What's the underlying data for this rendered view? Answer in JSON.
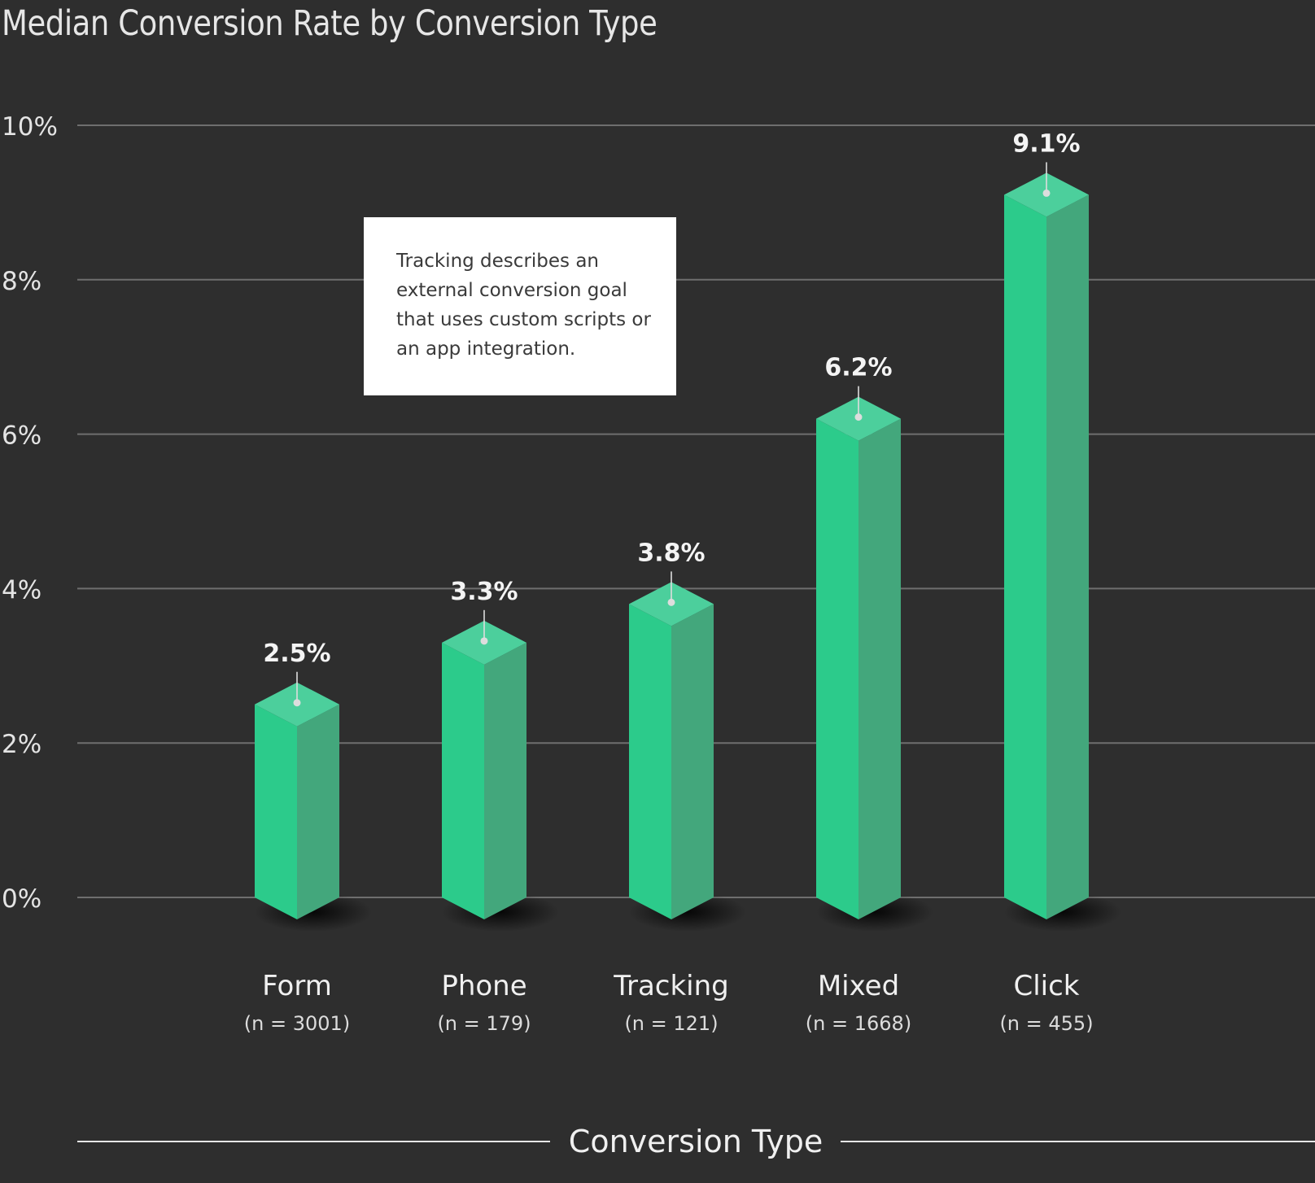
{
  "chart_data": {
    "type": "bar",
    "title": "Median Conversion Rate by Conversion Type",
    "xlabel": "Conversion Type",
    "ylabel": "",
    "ylim": [
      0,
      10
    ],
    "y_ticks": [
      "0%",
      "2%",
      "4%",
      "6%",
      "8%",
      "10%"
    ],
    "categories": [
      "Form",
      "Phone",
      "Tracking",
      "Mixed",
      "Click"
    ],
    "counts": [
      "(n = 3001)",
      "(n = 179)",
      "(n = 121)",
      "(n = 1668)",
      "(n = 455)"
    ],
    "values": [
      2.5,
      3.3,
      3.8,
      6.2,
      9.1
    ],
    "value_labels": [
      "2.5%",
      "3.3%",
      "3.8%",
      "6.2%",
      "9.1%"
    ],
    "grid": true,
    "colors": {
      "background": "#2e2e2e",
      "bar_front": "#2ccb8b",
      "bar_side": "#43a77c",
      "bar_top": "#4ccf9c",
      "grid": "#6e6e6e"
    }
  },
  "note": {
    "lines": [
      "Tracking describes an",
      "external conversion goal",
      "that uses custom scripts or",
      "an app integration."
    ]
  }
}
